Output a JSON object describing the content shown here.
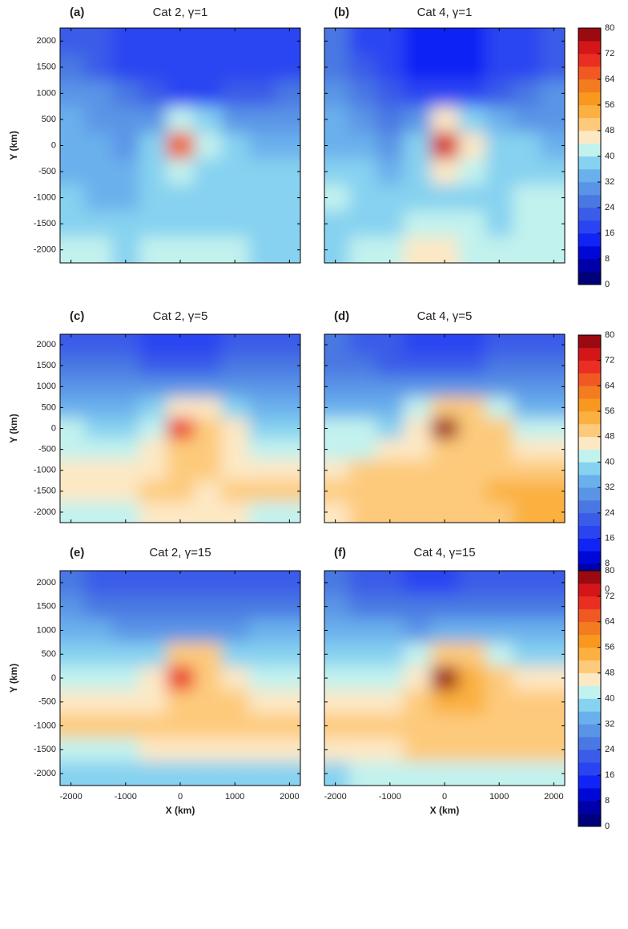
{
  "chart_data": [
    {
      "type": "heatmap",
      "label": "(a)",
      "title": "Cat 2, γ=1",
      "ylabel": "Y (km)",
      "show_ytick_labels": true,
      "show_xtick_labels": false,
      "x": [
        -2000,
        -1500,
        -1000,
        -500,
        0,
        500,
        1000,
        1500,
        2000
      ],
      "y": [
        2000,
        1500,
        1000,
        500,
        0,
        -500,
        -1000,
        -1500,
        -2000
      ],
      "xlim": [
        -2200,
        2200
      ],
      "ylim": [
        -2250,
        2250
      ],
      "xticks": [
        -2000,
        -1000,
        0,
        1000,
        2000
      ],
      "yticks": [
        2000,
        1500,
        1000,
        500,
        0,
        -500,
        -1000,
        -1500,
        -2000
      ],
      "z": [
        [
          22,
          20,
          18,
          16,
          16,
          16,
          16,
          16,
          18
        ],
        [
          26,
          22,
          18,
          16,
          16,
          16,
          16,
          16,
          18
        ],
        [
          30,
          28,
          24,
          20,
          18,
          18,
          20,
          22,
          24
        ],
        [
          32,
          30,
          28,
          30,
          42,
          36,
          30,
          30,
          30
        ],
        [
          34,
          34,
          30,
          36,
          66,
          40,
          36,
          34,
          34
        ],
        [
          34,
          34,
          34,
          36,
          42,
          38,
          36,
          36,
          36
        ],
        [
          36,
          34,
          34,
          36,
          38,
          38,
          36,
          38,
          38
        ],
        [
          38,
          36,
          36,
          38,
          38,
          38,
          36,
          38,
          38
        ],
        [
          40,
          40,
          38,
          40,
          40,
          40,
          40,
          38,
          38
        ]
      ]
    },
    {
      "type": "heatmap",
      "label": "(b)",
      "title": "Cat 4, γ=1",
      "show_ytick_labels": false,
      "show_xtick_labels": false,
      "x": [
        -2000,
        -1500,
        -1000,
        -500,
        0,
        500,
        1000,
        1500,
        2000
      ],
      "y": [
        2000,
        1500,
        1000,
        500,
        0,
        -500,
        -1000,
        -1500,
        -2000
      ],
      "xlim": [
        -2200,
        2200
      ],
      "ylim": [
        -2250,
        2250
      ],
      "xticks": [
        -2000,
        -1000,
        0,
        1000,
        2000
      ],
      "yticks": [
        2000,
        1500,
        1000,
        500,
        0,
        -500,
        -1000,
        -1500,
        -2000
      ],
      "z": [
        [
          24,
          18,
          16,
          14,
          14,
          14,
          16,
          18,
          20
        ],
        [
          26,
          20,
          16,
          14,
          14,
          14,
          16,
          18,
          22
        ],
        [
          30,
          26,
          22,
          18,
          18,
          18,
          22,
          26,
          28
        ],
        [
          32,
          30,
          26,
          30,
          44,
          38,
          32,
          30,
          30
        ],
        [
          34,
          32,
          30,
          36,
          72,
          44,
          38,
          36,
          34
        ],
        [
          38,
          36,
          34,
          36,
          44,
          40,
          38,
          36,
          36
        ],
        [
          40,
          38,
          36,
          36,
          38,
          38,
          38,
          40,
          40
        ],
        [
          38,
          38,
          38,
          40,
          42,
          40,
          38,
          40,
          42
        ],
        [
          38,
          40,
          42,
          44,
          44,
          42,
          42,
          40,
          40
        ]
      ]
    },
    {
      "type": "heatmap",
      "label": "(c)",
      "title": "Cat 2, γ=5",
      "ylabel": "Y (km)",
      "show_ytick_labels": true,
      "show_xtick_labels": false,
      "x": [
        -2000,
        -1500,
        -1000,
        -500,
        0,
        500,
        1000,
        1500,
        2000
      ],
      "y": [
        2000,
        1500,
        1000,
        500,
        0,
        -500,
        -1000,
        -1500,
        -2000
      ],
      "xlim": [
        -2200,
        2200
      ],
      "ylim": [
        -2250,
        2250
      ],
      "xticks": [
        -2000,
        -1000,
        0,
        1000,
        2000
      ],
      "yticks": [
        2000,
        1500,
        1000,
        500,
        0,
        -500,
        -1000,
        -1500,
        -2000
      ],
      "z": [
        [
          22,
          20,
          20,
          18,
          18,
          18,
          20,
          20,
          20
        ],
        [
          26,
          24,
          24,
          22,
          22,
          22,
          24,
          24,
          24
        ],
        [
          30,
          30,
          28,
          28,
          28,
          28,
          28,
          28,
          28
        ],
        [
          34,
          32,
          32,
          36,
          46,
          46,
          36,
          34,
          32
        ],
        [
          40,
          38,
          36,
          42,
          70,
          48,
          44,
          38,
          38
        ],
        [
          42,
          40,
          40,
          44,
          48,
          48,
          46,
          42,
          42
        ],
        [
          44,
          44,
          46,
          46,
          48,
          48,
          46,
          46,
          46
        ],
        [
          46,
          46,
          46,
          48,
          48,
          46,
          48,
          48,
          48
        ],
        [
          42,
          42,
          42,
          44,
          44,
          44,
          44,
          42,
          42
        ]
      ]
    },
    {
      "type": "heatmap",
      "label": "(d)",
      "title": "Cat 4, γ=5",
      "show_ytick_labels": false,
      "show_xtick_labels": false,
      "x": [
        -2000,
        -1500,
        -1000,
        -500,
        0,
        500,
        1000,
        1500,
        2000
      ],
      "y": [
        2000,
        1500,
        1000,
        500,
        0,
        -500,
        -1000,
        -1500,
        -2000
      ],
      "xlim": [
        -2200,
        2200
      ],
      "ylim": [
        -2250,
        2250
      ],
      "xticks": [
        -2000,
        -1000,
        0,
        1000,
        2000
      ],
      "yticks": [
        2000,
        1500,
        1000,
        500,
        0,
        -500,
        -1000,
        -1500,
        -2000
      ],
      "z": [
        [
          24,
          22,
          20,
          18,
          18,
          18,
          20,
          22,
          22
        ],
        [
          26,
          24,
          22,
          20,
          20,
          22,
          24,
          24,
          26
        ],
        [
          30,
          30,
          28,
          28,
          28,
          28,
          30,
          30,
          30
        ],
        [
          34,
          34,
          34,
          40,
          48,
          50,
          40,
          34,
          34
        ],
        [
          40,
          40,
          36,
          44,
          76,
          50,
          48,
          42,
          40
        ],
        [
          42,
          42,
          44,
          46,
          50,
          48,
          48,
          44,
          44
        ],
        [
          46,
          48,
          50,
          48,
          50,
          50,
          50,
          48,
          48
        ],
        [
          50,
          50,
          50,
          50,
          50,
          50,
          52,
          52,
          52
        ],
        [
          46,
          48,
          48,
          48,
          48,
          48,
          50,
          52,
          52
        ]
      ]
    },
    {
      "type": "heatmap",
      "label": "(e)",
      "title": "Cat 2, γ=15",
      "ylabel": "Y (km)",
      "xlabel": "X (km)",
      "show_ytick_labels": true,
      "show_xtick_labels": true,
      "x": [
        -2000,
        -1500,
        -1000,
        -500,
        0,
        500,
        1000,
        1500,
        2000
      ],
      "y": [
        2000,
        1500,
        1000,
        500,
        0,
        -500,
        -1000,
        -1500,
        -2000
      ],
      "xlim": [
        -2200,
        2200
      ],
      "ylim": [
        -2250,
        2250
      ],
      "xticks": [
        -2000,
        -1000,
        0,
        1000,
        2000
      ],
      "yticks": [
        2000,
        1500,
        1000,
        500,
        0,
        -500,
        -1000,
        -1500,
        -2000
      ],
      "z": [
        [
          24,
          22,
          22,
          20,
          20,
          20,
          22,
          22,
          22
        ],
        [
          28,
          26,
          26,
          24,
          24,
          24,
          26,
          26,
          26
        ],
        [
          32,
          32,
          30,
          30,
          30,
          30,
          30,
          32,
          32
        ],
        [
          38,
          36,
          36,
          38,
          48,
          48,
          38,
          38,
          38
        ],
        [
          42,
          42,
          40,
          44,
          70,
          50,
          44,
          42,
          42
        ],
        [
          46,
          46,
          44,
          46,
          50,
          50,
          48,
          46,
          46
        ],
        [
          50,
          50,
          48,
          48,
          50,
          50,
          50,
          50,
          50
        ],
        [
          42,
          42,
          42,
          44,
          44,
          44,
          44,
          44,
          44
        ],
        [
          36,
          36,
          36,
          36,
          36,
          36,
          36,
          36,
          36
        ]
      ]
    },
    {
      "type": "heatmap",
      "label": "(f)",
      "title": "Cat 4, γ=15",
      "xlabel": "X (km)",
      "show_ytick_labels": false,
      "show_xtick_labels": true,
      "x": [
        -2000,
        -1500,
        -1000,
        -500,
        0,
        500,
        1000,
        1500,
        2000
      ],
      "y": [
        2000,
        1500,
        1000,
        500,
        0,
        -500,
        -1000,
        -1500,
        -2000
      ],
      "xlim": [
        -2200,
        2200
      ],
      "ylim": [
        -2250,
        2250
      ],
      "xticks": [
        -2000,
        -1000,
        0,
        1000,
        2000
      ],
      "yticks": [
        2000,
        1500,
        1000,
        500,
        0,
        -500,
        -1000,
        -1500,
        -2000
      ],
      "z": [
        [
          24,
          22,
          20,
          18,
          18,
          20,
          22,
          22,
          22
        ],
        [
          28,
          26,
          26,
          24,
          24,
          24,
          26,
          26,
          26
        ],
        [
          32,
          32,
          32,
          30,
          32,
          32,
          32,
          34,
          34
        ],
        [
          38,
          38,
          38,
          42,
          50,
          50,
          42,
          38,
          38
        ],
        [
          42,
          42,
          40,
          46,
          76,
          52,
          50,
          44,
          44
        ],
        [
          46,
          46,
          46,
          48,
          52,
          52,
          50,
          48,
          48
        ],
        [
          48,
          48,
          48,
          50,
          50,
          50,
          50,
          50,
          50
        ],
        [
          44,
          44,
          46,
          48,
          48,
          48,
          48,
          48,
          48
        ],
        [
          38,
          40,
          40,
          42,
          42,
          42,
          42,
          40,
          40
        ]
      ]
    }
  ],
  "colorbar": {
    "levels": [
      0,
      4,
      8,
      12,
      16,
      20,
      24,
      28,
      32,
      36,
      40,
      44,
      48,
      52,
      56,
      60,
      64,
      68,
      72,
      76,
      80
    ],
    "colors": [
      "#00007a",
      "#0000a8",
      "#0008d8",
      "#1024f5",
      "#2a44f2",
      "#3a5ce8",
      "#4a78e2",
      "#5a94e6",
      "#6ab0ec",
      "#86d2f0",
      "#c2f2ee",
      "#fde8c4",
      "#fdca7c",
      "#fbb040",
      "#f8981e",
      "#f47c20",
      "#f05a22",
      "#ea2f22",
      "#d41618",
      "#9a0a10"
    ],
    "ticks": [
      0,
      8,
      16,
      24,
      32,
      40,
      48,
      56,
      64,
      72,
      80
    ]
  }
}
